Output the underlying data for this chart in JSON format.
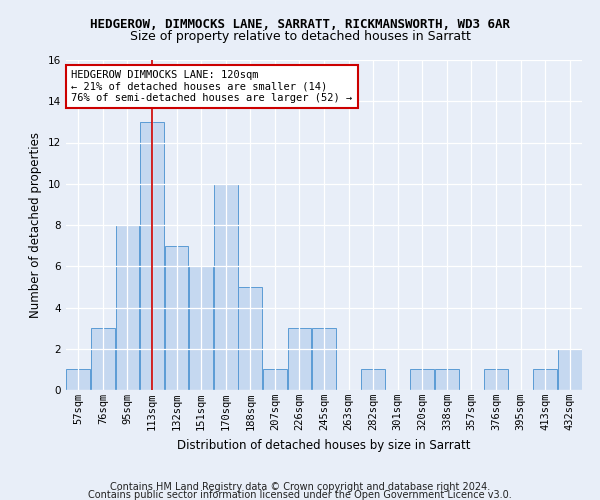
{
  "title": "HEDGEROW, DIMMOCKS LANE, SARRATT, RICKMANSWORTH, WD3 6AR",
  "subtitle": "Size of property relative to detached houses in Sarratt",
  "xlabel": "Distribution of detached houses by size in Sarratt",
  "ylabel": "Number of detached properties",
  "categories": [
    "57sqm",
    "76sqm",
    "95sqm",
    "113sqm",
    "132sqm",
    "151sqm",
    "170sqm",
    "188sqm",
    "207sqm",
    "226sqm",
    "245sqm",
    "263sqm",
    "282sqm",
    "301sqm",
    "320sqm",
    "338sqm",
    "357sqm",
    "376sqm",
    "395sqm",
    "413sqm",
    "432sqm"
  ],
  "values": [
    1,
    3,
    8,
    13,
    7,
    6,
    10,
    5,
    1,
    3,
    3,
    0,
    1,
    0,
    1,
    1,
    0,
    1,
    0,
    1,
    2
  ],
  "bar_color": "#c5d8f0",
  "bar_edge_color": "#5b9bd5",
  "vline_x": 3,
  "vline_color": "#cc0000",
  "ylim": [
    0,
    16
  ],
  "yticks": [
    0,
    2,
    4,
    6,
    8,
    10,
    12,
    14,
    16
  ],
  "annotation_title": "HEDGEROW DIMMOCKS LANE: 120sqm",
  "annotation_line1": "← 21% of detached houses are smaller (14)",
  "annotation_line2": "76% of semi-detached houses are larger (52) →",
  "annotation_box_color": "#ffffff",
  "annotation_box_edge": "#cc0000",
  "footer1": "Contains HM Land Registry data © Crown copyright and database right 2024.",
  "footer2": "Contains public sector information licensed under the Open Government Licence v3.0.",
  "bg_color": "#e8eef8",
  "plot_bg_color": "#e8eef8",
  "title_fontsize": 9,
  "subtitle_fontsize": 9,
  "axis_label_fontsize": 8.5,
  "tick_fontsize": 7.5,
  "footer_fontsize": 7
}
